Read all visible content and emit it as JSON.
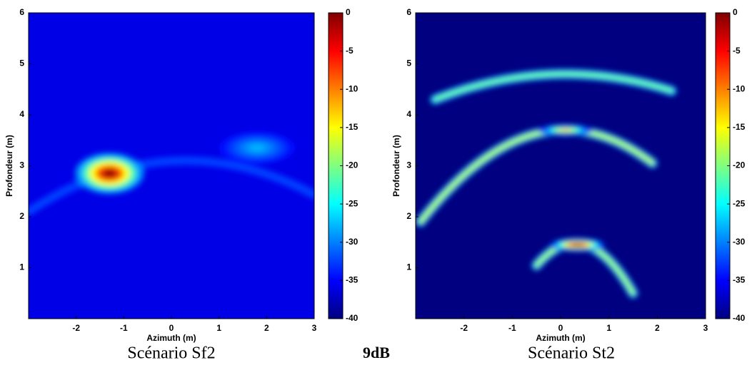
{
  "chart_data": [
    {
      "type": "heatmap",
      "caption": "Scénario Sf2",
      "xlabel": "Azimuth (m)",
      "ylabel": "Profondeur (m)",
      "xlim": [
        -3,
        3
      ],
      "xticks": [
        -2,
        -1,
        0,
        1,
        2,
        3
      ],
      "ylim": [
        0,
        6
      ],
      "yticks": [
        1,
        2,
        3,
        4,
        5,
        6
      ],
      "colormap": "jet",
      "clim": [
        -40,
        0
      ],
      "cticks": [
        0,
        -5,
        -10,
        -15,
        -20,
        -25,
        -30,
        -35,
        -40
      ],
      "background": -36,
      "arcs": [
        {
          "x0": -3,
          "x1": 3,
          "apex_x": 0.3,
          "apex_y": 3.1,
          "end_y": 2.1,
          "value": -32
        }
      ],
      "peaks": [
        {
          "x": -1.3,
          "y": 2.85,
          "rx": 0.45,
          "ry": 0.25,
          "value": -1
        },
        {
          "x": 1.8,
          "y": 3.35,
          "rx": 0.5,
          "ry": 0.2,
          "value": -28
        }
      ]
    },
    {
      "type": "heatmap",
      "caption": "Scénario St2",
      "xlabel": "Azimuth (m)",
      "ylabel": "Profondeur (m)",
      "xlim": [
        -3,
        3
      ],
      "xticks": [
        -2,
        -1,
        0,
        1,
        2,
        3
      ],
      "ylim": [
        0,
        6
      ],
      "yticks": [
        1,
        2,
        3,
        4,
        5,
        6
      ],
      "colormap": "jet",
      "clim": [
        -40,
        0
      ],
      "cticks": [
        0,
        -5,
        -10,
        -15,
        -20,
        -25,
        -30,
        -35,
        -40
      ],
      "background": -40,
      "arcs": [
        {
          "x0": -2.6,
          "x1": 2.3,
          "apex_x": 0.1,
          "apex_y": 4.8,
          "end_y": 4.3,
          "value": -20
        },
        {
          "x0": -2.9,
          "x1": 1.9,
          "apex_x": 0.1,
          "apex_y": 3.7,
          "end_y": 1.9,
          "value": -17
        },
        {
          "x0": -0.5,
          "x1": 1.5,
          "apex_x": 0.3,
          "apex_y": 1.48,
          "end_y": 0.5,
          "value": -18
        }
      ],
      "peaks": [
        {
          "x": 0.1,
          "y": 3.7,
          "rx": 0.35,
          "ry": 0.07,
          "value": -12
        },
        {
          "x": 0.35,
          "y": 1.45,
          "rx": 0.35,
          "ry": 0.08,
          "value": -1
        }
      ]
    }
  ],
  "label": "9dB"
}
